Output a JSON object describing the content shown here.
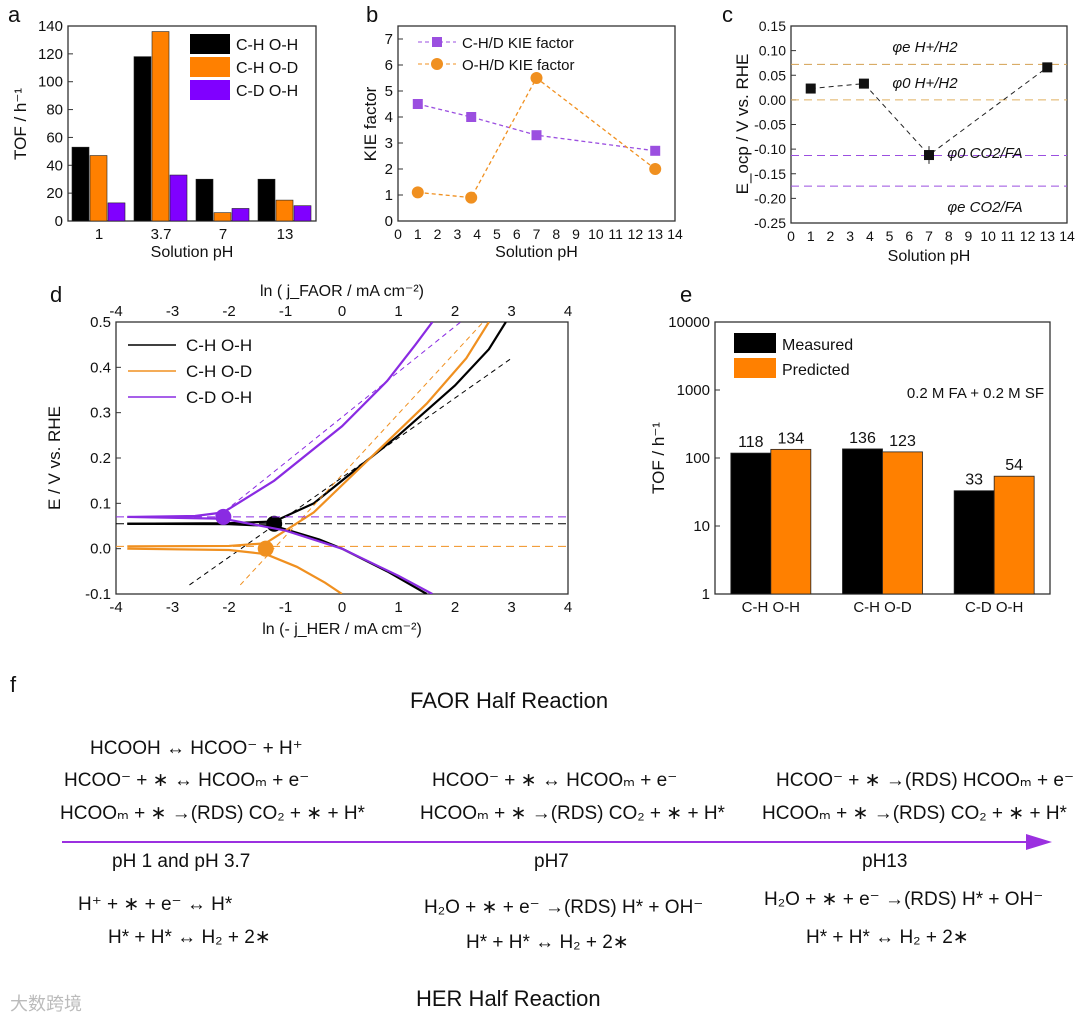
{
  "panel_labels": [
    "a",
    "b",
    "c",
    "d",
    "e",
    "f"
  ],
  "chart_data": [
    {
      "id": "a",
      "type": "bar",
      "categories": [
        "1",
        "3.7",
        "7",
        "13"
      ],
      "xlabel": "Solution pH",
      "ylabel": "TOF / h⁻¹",
      "ylim": [
        0,
        140
      ],
      "yticks": [
        0,
        20,
        40,
        60,
        80,
        100,
        120,
        140
      ],
      "series": [
        {
          "name": "C-H O-H",
          "color": "#000000",
          "values": [
            53,
            118,
            30,
            30
          ]
        },
        {
          "name": "C-H O-D",
          "color": "#ff8000",
          "values": [
            47,
            136,
            6,
            15
          ]
        },
        {
          "name": "C-D O-H",
          "color": "#8000ff",
          "values": [
            13,
            33,
            9,
            11
          ]
        }
      ],
      "legend": "top-right"
    },
    {
      "id": "b",
      "type": "line",
      "xlabel": "Solution pH",
      "ylabel": "KIE factor",
      "xlim": [
        0,
        14
      ],
      "ylim": [
        0,
        7.5
      ],
      "xticks": [
        0,
        1,
        2,
        3,
        4,
        5,
        6,
        7,
        8,
        9,
        10,
        11,
        12,
        13,
        14
      ],
      "yticks": [
        0,
        1,
        2,
        3,
        4,
        5,
        6,
        7
      ],
      "x": [
        1,
        3.7,
        7,
        13
      ],
      "series": [
        {
          "name": "C-H/D KIE factor",
          "color": "#9b4fe0",
          "marker": "square",
          "values": [
            4.5,
            4.0,
            3.3,
            2.7
          ]
        },
        {
          "name": "O-H/D KIE factor",
          "color": "#f09020",
          "marker": "circle",
          "values": [
            1.1,
            0.9,
            5.5,
            2.0
          ]
        }
      ],
      "legend": "top-left"
    },
    {
      "id": "c",
      "type": "scatter",
      "xlabel": "Solution pH",
      "ylabel": "E_ocp / V vs. RHE",
      "xlim": [
        0,
        14
      ],
      "ylim": [
        -0.25,
        0.15
      ],
      "xticks": [
        0,
        1,
        2,
        3,
        4,
        5,
        6,
        7,
        8,
        9,
        10,
        11,
        12,
        13,
        14
      ],
      "yticks": [
        "-0.25",
        "-0.20",
        "-0.15",
        "-0.10",
        "-0.05",
        "0.00",
        "0.05",
        "0.10",
        "0.15"
      ],
      "x": [
        1,
        3.7,
        7,
        13
      ],
      "values": [
        0.023,
        0.033,
        -0.112,
        0.066
      ],
      "errors": [
        0,
        0,
        0.018,
        0
      ],
      "ref_lines": [
        {
          "label": "φe H+/H2",
          "value": 0.072,
          "color": "#d4a050"
        },
        {
          "label": "φ0 H+/H2",
          "value": 0.0,
          "color": "#e0b060"
        },
        {
          "label": "φ0 CO2/FA",
          "value": -0.113,
          "color": "#9b4fe0"
        },
        {
          "label": "φe CO2/FA",
          "value": -0.175,
          "color": "#9b4fe0"
        }
      ]
    },
    {
      "id": "d",
      "type": "line",
      "xlabel": "ln (- j_HER / mA cm⁻²)",
      "x2label": "ln ( j_FAOR / mA cm⁻²)",
      "ylabel": "E / V vs. RHE",
      "xlim": [
        -4,
        4
      ],
      "ylim": [
        -0.1,
        0.5
      ],
      "xticks": [
        -4,
        -3,
        -2,
        -1,
        0,
        1,
        2,
        3,
        4
      ],
      "yticks": [
        "-0.1",
        "0.0",
        "0.1",
        "0.2",
        "0.3",
        "0.4",
        "0.5"
      ],
      "series": [
        {
          "name": "C-H O-H",
          "color": "#000000",
          "faor": [
            [
              -3.8,
              0.055
            ],
            [
              -2,
              0.056
            ],
            [
              -1.2,
              0.06
            ],
            [
              -0.5,
              0.1
            ],
            [
              0,
              0.15
            ],
            [
              1,
              0.25
            ],
            [
              2,
              0.36
            ],
            [
              2.6,
              0.44
            ],
            [
              2.9,
              0.5
            ]
          ],
          "her": [
            [
              -3.8,
              0.055
            ],
            [
              -2,
              0.054
            ],
            [
              -1.2,
              0.05
            ],
            [
              -0.4,
              0.02
            ],
            [
              0,
              0.0
            ],
            [
              0.8,
              -0.05
            ],
            [
              1.5,
              -0.1
            ]
          ],
          "ocp": [
            -1.2,
            0.055
          ],
          "tafel": [
            [
              -2.7,
              -0.08
            ],
            [
              3,
              0.42
            ]
          ],
          "eq": 0.055
        },
        {
          "name": "C-H O-D",
          "color": "#f09020",
          "faor": [
            [
              -3.8,
              0.005
            ],
            [
              -2,
              0.006
            ],
            [
              -1.35,
              0.012
            ],
            [
              -0.5,
              0.08
            ],
            [
              0.5,
              0.2
            ],
            [
              1.5,
              0.32
            ],
            [
              2.2,
              0.42
            ],
            [
              2.6,
              0.5
            ]
          ],
          "her": [
            [
              -3.8,
              0.0
            ],
            [
              -2,
              -0.003
            ],
            [
              -1.35,
              -0.012
            ],
            [
              -0.8,
              -0.04
            ],
            [
              -0.3,
              -0.075
            ],
            [
              0,
              -0.1
            ]
          ],
          "ocp": [
            -1.35,
            0.0
          ],
          "tafel": [
            [
              -1.8,
              -0.08
            ],
            [
              2.5,
              0.5
            ]
          ],
          "eq": 0.005
        },
        {
          "name": "C-D O-H",
          "color": "#8a2be2",
          "faor": [
            [
              -3.8,
              0.07
            ],
            [
              -2.6,
              0.072
            ],
            [
              -2.1,
              0.08
            ],
            [
              -1.2,
              0.15
            ],
            [
              0,
              0.27
            ],
            [
              0.8,
              0.37
            ],
            [
              1.3,
              0.45
            ],
            [
              1.6,
              0.5
            ]
          ],
          "her": [
            [
              -3.8,
              0.07
            ],
            [
              -2.1,
              0.066
            ],
            [
              -1,
              0.04
            ],
            [
              0,
              0.0
            ],
            [
              1,
              -0.06
            ],
            [
              1.6,
              -0.1
            ]
          ],
          "ocp": [
            -2.1,
            0.07
          ],
          "tafel": [
            [
              -2.2,
              0.07
            ],
            [
              2.1,
              0.5
            ]
          ],
          "eq": 0.07
        }
      ],
      "legend": "top-left"
    },
    {
      "id": "e",
      "type": "bar",
      "categories": [
        "C-H O-H",
        "C-H O-D",
        "C-D O-H"
      ],
      "ylabel": "TOF / h⁻¹",
      "yscale": "log",
      "ylim": [
        1,
        10000
      ],
      "yticks": [
        "1",
        "10",
        "100",
        "1000",
        "10000"
      ],
      "annotation": "0.2 M FA + 0.2 M SF",
      "series": [
        {
          "name": "Measured",
          "color": "#000000",
          "values": [
            118,
            136,
            33
          ]
        },
        {
          "name": "Predicted",
          "color": "#ff8000",
          "values": [
            134,
            123,
            54
          ]
        }
      ],
      "legend": "top-left"
    }
  ],
  "scheme": {
    "faor_title": "FAOR Half Reaction",
    "her_title": "HER Half Reaction",
    "col1": {
      "label": "pH 1 and pH 3.7",
      "faor": [
        "HCOOH ↔ HCOO⁻ + H⁺",
        "HCOO⁻ + ∗ ↔ HCOOₘ + e⁻",
        "HCOOₘ + ∗ →(RDS) CO₂ + ∗ + H*"
      ],
      "her": [
        "H⁺ + ∗ + e⁻ ↔ H*",
        "H* + H* ↔ H₂ + 2∗"
      ]
    },
    "col2": {
      "label": "pH7",
      "faor": [
        "HCOO⁻ + ∗ ↔ HCOOₘ + e⁻",
        "HCOOₘ + ∗ →(RDS) CO₂ + ∗ + H*"
      ],
      "her": [
        "H₂O + ∗ + e⁻ →(RDS) H* + OH⁻",
        "H* + H* ↔ H₂ + 2∗"
      ]
    },
    "col3": {
      "label": "pH13",
      "faor": [
        "HCOO⁻ + ∗ →(RDS) HCOOₘ + e⁻",
        "HCOOₘ + ∗ →(RDS) CO₂ + ∗ + H*"
      ],
      "her": [
        "H₂O + ∗ + e⁻ →(RDS) H* + OH⁻",
        "H* + H* ↔ H₂ + 2∗"
      ]
    },
    "arrow_color": "#9b30e0"
  },
  "watermark": "大数跨境"
}
